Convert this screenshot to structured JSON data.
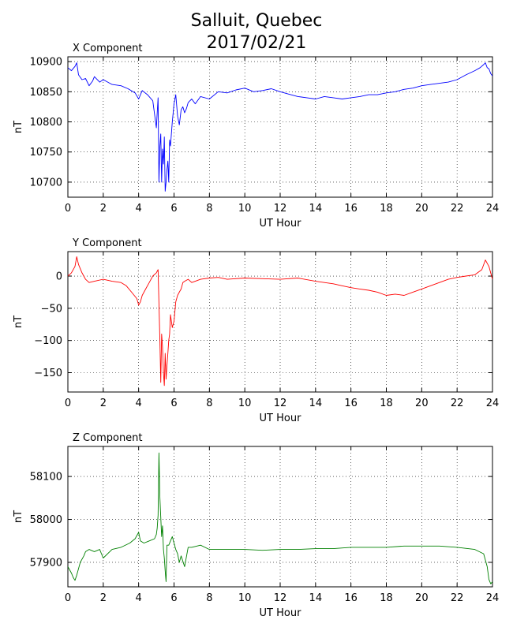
{
  "title_line1": "Salluit, Quebec",
  "title_line2": "2017/02/21",
  "chart_data": [
    {
      "type": "line",
      "title": "X Component",
      "xlabel": "UT Hour",
      "ylabel": "nT",
      "xlim": [
        0,
        24
      ],
      "ylim": [
        10675,
        10908
      ],
      "xticks": [
        0,
        2,
        4,
        6,
        8,
        10,
        12,
        14,
        16,
        18,
        20,
        22,
        24
      ],
      "yticks": [
        10700,
        10750,
        10800,
        10850,
        10900
      ],
      "grid": true,
      "color": "#0000ff",
      "series": [
        {
          "x": [
            0.0,
            0.2,
            0.4,
            0.5,
            0.6,
            0.8,
            1.0,
            1.2,
            1.4,
            1.5,
            1.8,
            2.0,
            2.5,
            3.0,
            3.4,
            3.8,
            4.0,
            4.2,
            4.5,
            4.8,
            5.0,
            5.1,
            5.15,
            5.2,
            5.25,
            5.3,
            5.35,
            5.4,
            5.45,
            5.5,
            5.55,
            5.6,
            5.65,
            5.7,
            5.75,
            5.8,
            5.9,
            6.0,
            6.1,
            6.2,
            6.3,
            6.4,
            6.5,
            6.6,
            6.7,
            6.8,
            7.0,
            7.2,
            7.5,
            8.0,
            8.5,
            9.0,
            9.5,
            10.0,
            10.5,
            11.0,
            11.5,
            12.0,
            12.5,
            13.0,
            13.5,
            14.0,
            14.5,
            15.0,
            15.5,
            16.0,
            16.5,
            17.0,
            17.5,
            18.0,
            18.5,
            19.0,
            19.5,
            20.0,
            20.5,
            21.0,
            21.5,
            22.0,
            22.5,
            23.0,
            23.3,
            23.5,
            23.6,
            23.7,
            23.8,
            23.9,
            24.0
          ],
          "y": [
            10890,
            10885,
            10892,
            10898,
            10878,
            10870,
            10872,
            10860,
            10868,
            10875,
            10866,
            10870,
            10862,
            10860,
            10855,
            10848,
            10838,
            10852,
            10845,
            10835,
            10790,
            10840,
            10700,
            10760,
            10780,
            10700,
            10755,
            10730,
            10775,
            10685,
            10700,
            10720,
            10735,
            10700,
            10770,
            10760,
            10800,
            10830,
            10845,
            10810,
            10795,
            10820,
            10825,
            10815,
            10822,
            10832,
            10838,
            10830,
            10842,
            10838,
            10850,
            10848,
            10853,
            10856,
            10850,
            10852,
            10855,
            10850,
            10846,
            10842,
            10840,
            10838,
            10842,
            10840,
            10838,
            10840,
            10842,
            10845,
            10845,
            10848,
            10850,
            10854,
            10856,
            10860,
            10862,
            10864,
            10866,
            10870,
            10878,
            10885,
            10890,
            10895,
            10898,
            10890,
            10888,
            10880,
            10876
          ]
        }
      ]
    },
    {
      "type": "line",
      "title": "Y Component",
      "xlabel": "UT Hour",
      "ylabel": "nT",
      "xlim": [
        0,
        24
      ],
      "ylim": [
        -180,
        38
      ],
      "xticks": [
        0,
        2,
        4,
        6,
        8,
        10,
        12,
        14,
        16,
        18,
        20,
        22,
        24
      ],
      "yticks": [
        0,
        -50,
        -100,
        -150
      ],
      "grid": true,
      "color": "#ff0000",
      "series": [
        {
          "x": [
            0.0,
            0.2,
            0.4,
            0.5,
            0.6,
            0.8,
            1.0,
            1.2,
            1.5,
            2.0,
            2.5,
            3.0,
            3.3,
            3.6,
            3.9,
            4.0,
            4.1,
            4.2,
            4.4,
            4.6,
            4.8,
            5.0,
            5.1,
            5.2,
            5.25,
            5.3,
            5.35,
            5.4,
            5.45,
            5.5,
            5.55,
            5.6,
            5.65,
            5.7,
            5.75,
            5.8,
            5.9,
            6.0,
            6.1,
            6.2,
            6.3,
            6.4,
            6.5,
            6.6,
            6.8,
            7.0,
            7.2,
            7.5,
            8.0,
            8.5,
            9.0,
            10.0,
            11.0,
            12.0,
            13.0,
            14.0,
            14.5,
            15.0,
            15.5,
            16.0,
            16.5,
            17.0,
            17.5,
            18.0,
            18.5,
            19.0,
            19.5,
            20.0,
            20.5,
            21.0,
            21.5,
            22.0,
            22.5,
            23.0,
            23.4,
            23.6,
            23.8,
            24.0
          ],
          "y": [
            0,
            5,
            15,
            30,
            18,
            5,
            -5,
            -10,
            -8,
            -5,
            -8,
            -10,
            -15,
            -25,
            -35,
            -45,
            -40,
            -30,
            -20,
            -10,
            0,
            5,
            10,
            -100,
            -165,
            -90,
            -110,
            -150,
            -170,
            -120,
            -160,
            -140,
            -120,
            -100,
            -90,
            -60,
            -80,
            -70,
            -40,
            -30,
            -25,
            -20,
            -10,
            -8,
            -5,
            -10,
            -8,
            -5,
            -3,
            -2,
            -5,
            -3,
            -4,
            -5,
            -3,
            -8,
            -10,
            -12,
            -15,
            -18,
            -20,
            -22,
            -25,
            -30,
            -28,
            -30,
            -25,
            -20,
            -15,
            -10,
            -5,
            -2,
            0,
            2,
            10,
            25,
            15,
            -5
          ]
        }
      ]
    },
    {
      "type": "line",
      "title": "Z Component",
      "xlabel": "UT Hour",
      "ylabel": "nT",
      "xlim": [
        0,
        24
      ],
      "ylim": [
        57843,
        58170
      ],
      "xticks": [
        0,
        2,
        4,
        6,
        8,
        10,
        12,
        14,
        16,
        18,
        20,
        22,
        24
      ],
      "yticks": [
        58100,
        58000,
        57900
      ],
      "grid": true,
      "color": "#008000",
      "series": [
        {
          "x": [
            0.0,
            0.2,
            0.3,
            0.4,
            0.5,
            0.7,
            0.9,
            1.0,
            1.2,
            1.5,
            1.8,
            2.0,
            2.5,
            3.0,
            3.5,
            3.8,
            4.0,
            4.1,
            4.3,
            4.6,
            4.9,
            5.0,
            5.05,
            5.1,
            5.15,
            5.2,
            5.25,
            5.3,
            5.35,
            5.4,
            5.45,
            5.5,
            5.55,
            5.6,
            5.7,
            5.8,
            5.9,
            6.0,
            6.1,
            6.2,
            6.3,
            6.4,
            6.6,
            6.8,
            7.0,
            7.5,
            8.0,
            9.0,
            10.0,
            11.0,
            12.0,
            13.0,
            14.0,
            15.0,
            16.0,
            17.0,
            18.0,
            19.0,
            20.0,
            21.0,
            22.0,
            23.0,
            23.5,
            23.7,
            23.8,
            23.9,
            24.0
          ],
          "y": [
            57890,
            57875,
            57865,
            57858,
            57870,
            57900,
            57915,
            57925,
            57930,
            57925,
            57930,
            57910,
            57930,
            57935,
            57945,
            57955,
            57970,
            57950,
            57945,
            57950,
            57955,
            57965,
            57980,
            58010,
            58155,
            58050,
            58005,
            57960,
            57985,
            57930,
            57910,
            57880,
            57855,
            57940,
            57940,
            57950,
            57960,
            57945,
            57930,
            57920,
            57900,
            57915,
            57890,
            57935,
            57935,
            57940,
            57930,
            57930,
            57930,
            57928,
            57930,
            57930,
            57932,
            57932,
            57935,
            57935,
            57935,
            57938,
            57938,
            57938,
            57935,
            57930,
            57920,
            57890,
            57860,
            57850,
            57855
          ]
        }
      ]
    }
  ]
}
